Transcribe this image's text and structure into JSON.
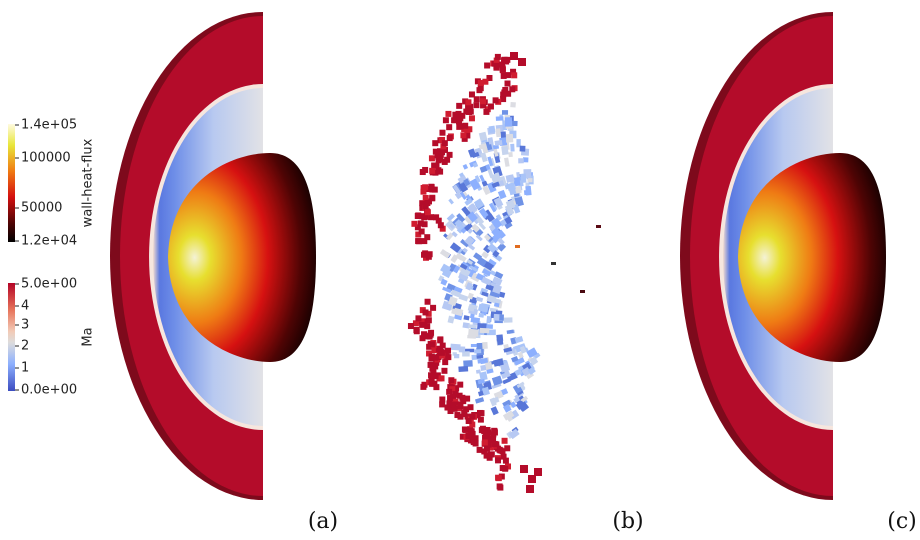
{
  "colorbars": [
    {
      "title": "wall-heat-flux",
      "ticks": [
        "1.4e+05",
        "100000",
        "50000",
        "1.2e+04"
      ]
    },
    {
      "title": "Ma",
      "ticks": [
        "5.0e+00",
        "4",
        "3",
        "2",
        "1",
        "0.0e+00"
      ]
    }
  ],
  "panels": [
    "(a)",
    "(b)",
    "(c)"
  ]
}
